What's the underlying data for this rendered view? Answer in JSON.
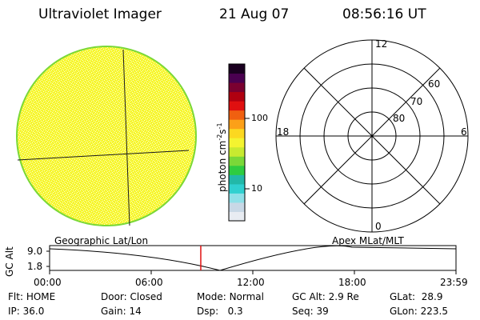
{
  "header": {
    "instrument": "Ultraviolet Imager",
    "date": "21 Aug 07",
    "time": "08:56:16 UT"
  },
  "colorbar": {
    "unit_label": "photon cm",
    "unit_exp1": "-2",
    "unit_mid": "s",
    "unit_exp2": "-1",
    "ticks": [
      "100",
      "10"
    ],
    "colors": [
      "#e8ecf2",
      "#c8d8e6",
      "#8fe0e8",
      "#30d0d0",
      "#22b8a8",
      "#2ecc40",
      "#7ad838",
      "#c8ea30",
      "#f4f430",
      "#fcd820",
      "#fca018",
      "#f06010",
      "#e01010",
      "#b00010",
      "#7a0030",
      "#4a0050",
      "#1a0020"
    ]
  },
  "polar_grid": {
    "mlt_labels": [
      "12",
      "18",
      "6",
      "0"
    ],
    "lat_labels": [
      "60",
      "70",
      "80"
    ]
  },
  "timeline": {
    "ylabel": "GC Alt",
    "yticks": [
      "9.0",
      "1.8"
    ],
    "left_title": "Geographic Lat/Lon",
    "right_title": "Apex MLat/MLT",
    "xticks": [
      "00:00",
      "06:00",
      "12:00",
      "18:00",
      "23:59"
    ],
    "marker_time_fraction": 0.372
  },
  "status": {
    "flt_label": "Flt:",
    "flt_value": "HOME",
    "ip_label": "IP:",
    "ip_value": "36.0",
    "door_label": "Door:",
    "door_value": "Closed",
    "gain_label": "Gain:",
    "gain_value": "14",
    "mode_label": "Mode:",
    "mode_value": "Normal",
    "dsp_label": "Dsp:",
    "dsp_value": "0.3",
    "gcalt_label": "GC Alt:",
    "gcalt_value": "2.9 Re",
    "seq_label": "Seq:",
    "seq_value": "39",
    "glat_label": "GLat:",
    "glat_value": "28.9",
    "glon_label": "GLon:",
    "glon_value": "223.5"
  },
  "colors": {
    "disk_fill": "#f6f630",
    "disk_speckle": "#ffffd0",
    "disk_edge": "#7ad838",
    "marker": "#e01010"
  }
}
